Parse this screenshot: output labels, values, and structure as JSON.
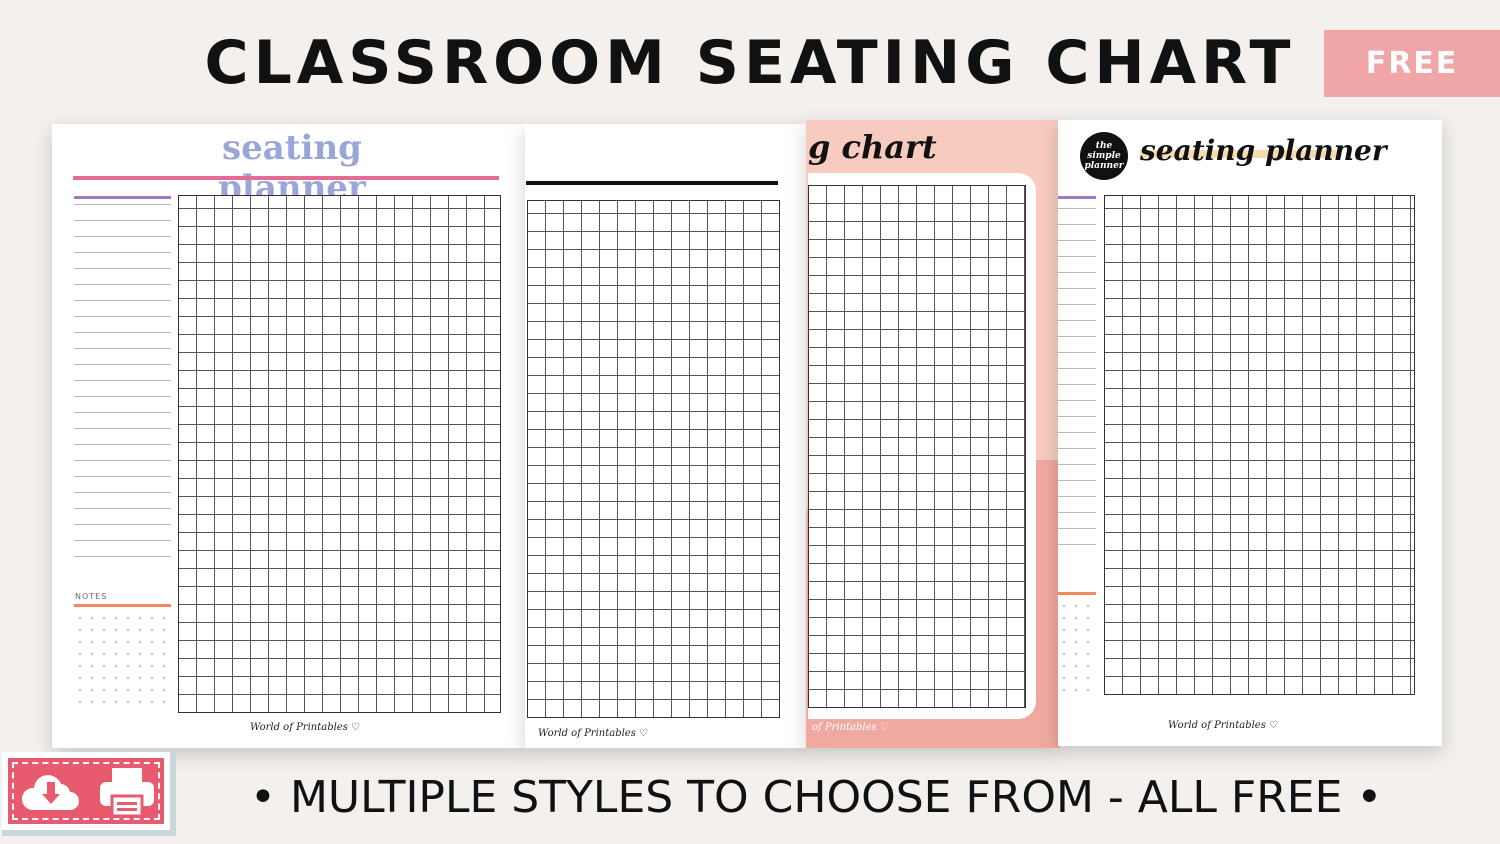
{
  "header": {
    "title": "CLASSROOM SEATING CHART",
    "badge": "FREE"
  },
  "pages": [
    {
      "title": "seating planner",
      "notes_label": "NOTES",
      "signature": "World of Printables ♡"
    },
    {
      "signature": "World of Printables ♡"
    },
    {
      "title": "g chart",
      "signature": "of Printables ♡",
      "background": "#f7cbbf"
    },
    {
      "logo": "the simple planner",
      "title": "seating planner",
      "signature": "World of Printables ♡"
    }
  ],
  "download_print_badge": {
    "icons": [
      "cloud-download-icon",
      "printer-icon"
    ],
    "color": "#e85a6e"
  },
  "footer": {
    "text": "• MULTIPLE STYLES TO CHOOSE FROM - ALL FREE •"
  }
}
